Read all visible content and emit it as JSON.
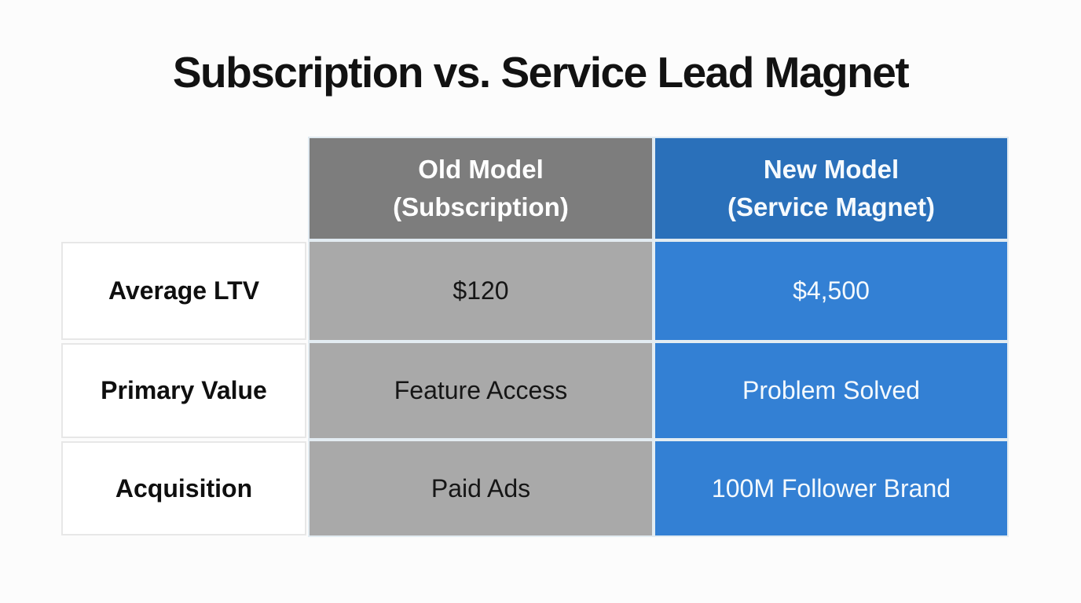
{
  "title": "Subscription vs. Service Lead Magnet",
  "table": {
    "columns": [
      {
        "line1": "Old Model",
        "line2": "(Subscription)"
      },
      {
        "line1": "New Model",
        "line2": "(Service Magnet)"
      }
    ],
    "rows": [
      {
        "label": "Average LTV",
        "old": "$120",
        "new": "$4,500"
      },
      {
        "label": "Primary Value",
        "old": "Feature Access",
        "new": "Problem Solved"
      },
      {
        "label": "Acquisition",
        "old": "Paid Ads",
        "new": "100M Follower Brand"
      }
    ]
  },
  "colors": {
    "header_gray": "#7d7d7d",
    "body_gray": "#a9a9a9",
    "header_blue": "#2a70ba",
    "body_blue": "#3380d4",
    "title_text": "#121212",
    "header_text": "#ffffff",
    "blue_cell_text": "#f4f9fd",
    "gray_cell_text": "#161616"
  },
  "chart_data": {
    "type": "table",
    "title": "Subscription vs. Service Lead Magnet",
    "columns": [
      "",
      "Old Model (Subscription)",
      "New Model (Service Magnet)"
    ],
    "rows": [
      [
        "Average LTV",
        "$120",
        "$4,500"
      ],
      [
        "Primary Value",
        "Feature Access",
        "Problem Solved"
      ],
      [
        "Acquisition",
        "Paid Ads",
        "100M Follower Brand"
      ]
    ],
    "legend_position": "none",
    "grid": "cell-borders"
  }
}
